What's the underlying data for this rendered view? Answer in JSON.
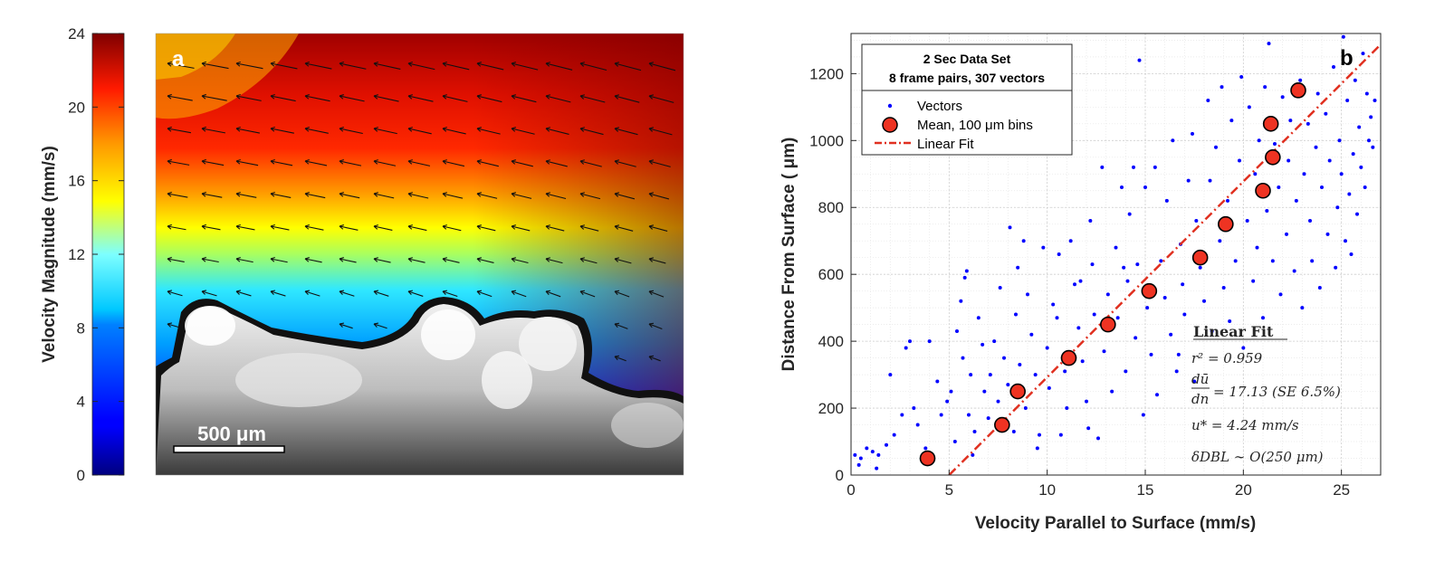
{
  "panel_a": {
    "label": "a",
    "scale_bar_label": "500 μm",
    "colorbar": {
      "label": "Velocity Magnitude (mm/s)",
      "ticks": [
        0,
        4,
        8,
        12,
        16,
        20,
        24
      ],
      "range": [
        0,
        24
      ]
    }
  },
  "panel_b": {
    "label": "b",
    "legend_title_line1": "2 Sec Data Set",
    "legend_title_line2": "8 frame pairs, 307 vectors",
    "fit_box": {
      "title": "Linear Fit",
      "r2": "r² = 0.959",
      "slope_lhs_num": "dū",
      "slope_lhs_den": "dn",
      "slope": "= 17.13   (SE 6.5%)",
      "ustar": "u* = 4.24 mm/s",
      "dbl": "δDBL ∼ O(250 μm)"
    }
  },
  "colors": {
    "vectors": "#0000ff",
    "means": "#ee3322",
    "fit": "#e03020",
    "grid": "#d8d8d8"
  },
  "chart_data": [
    {
      "type": "heatmap",
      "title": "",
      "colorbar_label": "Velocity Magnitude (mm/s)",
      "colorbar_range": [
        0,
        24
      ],
      "colorbar_ticks": [
        0,
        4,
        8,
        12,
        16,
        20,
        24
      ],
      "annotations": [
        "a",
        "500 μm"
      ]
    },
    {
      "type": "scatter",
      "title": "",
      "xlabel": "Velocity Parallel to Surface (mm/s)",
      "ylabel": "Distance From Surface ( μm)",
      "xlim": [
        0,
        27
      ],
      "ylim": [
        0,
        1320
      ],
      "xticks": [
        0,
        5,
        10,
        15,
        20,
        25
      ],
      "yticks": [
        0,
        200,
        400,
        600,
        800,
        1000,
        1200
      ],
      "grid": true,
      "legend_position": "top-left",
      "series": [
        {
          "name": "Vectors",
          "style": "points",
          "n_points": 307,
          "points": [
            [
              0.2,
              60
            ],
            [
              0.4,
              30
            ],
            [
              0.5,
              50
            ],
            [
              0.8,
              80
            ],
            [
              1.1,
              70
            ],
            [
              1.4,
              60
            ],
            [
              1.8,
              90
            ],
            [
              2.2,
              120
            ],
            [
              2.6,
              180
            ],
            [
              2.8,
              380
            ],
            [
              3.0,
              400
            ],
            [
              3.2,
              200
            ],
            [
              3.4,
              150
            ],
            [
              3.8,
              80
            ],
            [
              4.0,
              400
            ],
            [
              4.4,
              280
            ],
            [
              4.6,
              180
            ],
            [
              4.9,
              220
            ],
            [
              5.1,
              250
            ],
            [
              5.3,
              100
            ],
            [
              5.4,
              430
            ],
            [
              5.6,
              520
            ],
            [
              5.8,
              590
            ],
            [
              5.9,
              610
            ],
            [
              6.0,
              180
            ],
            [
              6.1,
              300
            ],
            [
              6.3,
              130
            ],
            [
              6.5,
              470
            ],
            [
              6.7,
              390
            ],
            [
              6.8,
              250
            ],
            [
              7.0,
              170
            ],
            [
              7.1,
              300
            ],
            [
              7.3,
              400
            ],
            [
              7.5,
              220
            ],
            [
              7.6,
              560
            ],
            [
              7.8,
              350
            ],
            [
              8.0,
              270
            ],
            [
              8.1,
              740
            ],
            [
              8.3,
              130
            ],
            [
              8.4,
              480
            ],
            [
              8.5,
              620
            ],
            [
              8.6,
              330
            ],
            [
              8.8,
              700
            ],
            [
              8.9,
              200
            ],
            [
              9.0,
              540
            ],
            [
              9.2,
              420
            ],
            [
              9.4,
              300
            ],
            [
              9.6,
              120
            ],
            [
              9.8,
              680
            ],
            [
              10.0,
              380
            ],
            [
              10.1,
              260
            ],
            [
              10.3,
              510
            ],
            [
              10.5,
              470
            ],
            [
              10.6,
              660
            ],
            [
              10.7,
              120
            ],
            [
              10.9,
              310
            ],
            [
              11.0,
              200
            ],
            [
              11.2,
              700
            ],
            [
              11.4,
              570
            ],
            [
              11.6,
              440
            ],
            [
              11.8,
              340
            ],
            [
              12.0,
              220
            ],
            [
              12.2,
              760
            ],
            [
              12.3,
              630
            ],
            [
              12.4,
              480
            ],
            [
              12.6,
              110
            ],
            [
              12.8,
              920
            ],
            [
              12.9,
              370
            ],
            [
              13.1,
              540
            ],
            [
              13.3,
              250
            ],
            [
              13.5,
              680
            ],
            [
              13.6,
              470
            ],
            [
              13.8,
              860
            ],
            [
              14.0,
              310
            ],
            [
              14.1,
              580
            ],
            [
              14.2,
              780
            ],
            [
              14.4,
              920
            ],
            [
              14.5,
              410
            ],
            [
              14.6,
              630
            ],
            [
              14.7,
              1240
            ],
            [
              14.9,
              180
            ],
            [
              15.0,
              860
            ],
            [
              15.1,
              500
            ],
            [
              15.3,
              360
            ],
            [
              15.5,
              920
            ],
            [
              15.6,
              240
            ],
            [
              15.8,
              640
            ],
            [
              16.0,
              530
            ],
            [
              16.1,
              820
            ],
            [
              16.3,
              420
            ],
            [
              16.4,
              1000
            ],
            [
              16.6,
              310
            ],
            [
              16.8,
              690
            ],
            [
              16.9,
              570
            ],
            [
              17.0,
              480
            ],
            [
              17.2,
              880
            ],
            [
              17.4,
              1020
            ],
            [
              17.5,
              280
            ],
            [
              17.6,
              760
            ],
            [
              17.8,
              620
            ],
            [
              18.0,
              520
            ],
            [
              18.2,
              1120
            ],
            [
              18.3,
              880
            ],
            [
              18.4,
              430
            ],
            [
              18.6,
              980
            ],
            [
              18.8,
              700
            ],
            [
              18.9,
              1160
            ],
            [
              19.0,
              560
            ],
            [
              19.2,
              820
            ],
            [
              19.3,
              460
            ],
            [
              19.4,
              1060
            ],
            [
              19.6,
              640
            ],
            [
              19.8,
              940
            ],
            [
              19.9,
              1190
            ],
            [
              20.0,
              380
            ],
            [
              20.2,
              760
            ],
            [
              20.3,
              1100
            ],
            [
              20.5,
              580
            ],
            [
              20.6,
              900
            ],
            [
              20.7,
              680
            ],
            [
              20.8,
              1000
            ],
            [
              21.0,
              470
            ],
            [
              21.1,
              1160
            ],
            [
              21.2,
              790
            ],
            [
              21.3,
              1290
            ],
            [
              21.5,
              640
            ],
            [
              21.6,
              990
            ],
            [
              21.8,
              860
            ],
            [
              21.9,
              540
            ],
            [
              22.0,
              1130
            ],
            [
              22.2,
              720
            ],
            [
              22.3,
              940
            ],
            [
              22.4,
              1060
            ],
            [
              22.6,
              610
            ],
            [
              22.7,
              820
            ],
            [
              22.9,
              1180
            ],
            [
              23.0,
              500
            ],
            [
              23.1,
              900
            ],
            [
              23.3,
              1050
            ],
            [
              23.4,
              760
            ],
            [
              23.5,
              640
            ],
            [
              23.7,
              980
            ],
            [
              23.8,
              1140
            ],
            [
              23.9,
              560
            ],
            [
              24.0,
              860
            ],
            [
              24.2,
              1080
            ],
            [
              24.3,
              720
            ],
            [
              24.4,
              940
            ],
            [
              24.6,
              1220
            ],
            [
              24.7,
              620
            ],
            [
              24.8,
              800
            ],
            [
              24.9,
              1000
            ],
            [
              25.0,
              900
            ],
            [
              25.1,
              1310
            ],
            [
              25.2,
              700
            ],
            [
              25.3,
              1120
            ],
            [
              25.4,
              840
            ],
            [
              25.5,
              660
            ],
            [
              25.6,
              960
            ],
            [
              25.7,
              1180
            ],
            [
              25.8,
              780
            ],
            [
              25.9,
              1040
            ],
            [
              26.0,
              920
            ],
            [
              26.1,
              1260
            ],
            [
              26.2,
              860
            ],
            [
              26.3,
              1140
            ],
            [
              26.4,
              1000
            ],
            [
              26.5,
              1070
            ],
            [
              26.6,
              980
            ],
            [
              26.7,
              1120
            ],
            [
              1.3,
              20
            ],
            [
              3.6,
              50
            ],
            [
              6.2,
              60
            ],
            [
              9.5,
              80
            ],
            [
              12.1,
              140
            ],
            [
              2.0,
              300
            ],
            [
              5.7,
              350
            ],
            [
              11.7,
              580
            ],
            [
              13.9,
              620
            ],
            [
              16.7,
              360
            ]
          ]
        },
        {
          "name": "Mean, 100 μm bins",
          "style": "circles",
          "x": [
            3.9,
            7.7,
            8.5,
            11.1,
            13.1,
            15.2,
            17.8,
            19.1,
            21.0,
            21.5,
            21.4,
            22.8
          ],
          "y": [
            50,
            150,
            250,
            350,
            450,
            550,
            650,
            750,
            850,
            950,
            1050,
            1150
          ]
        },
        {
          "name": "Linear Fit",
          "style": "dashdot-line",
          "x": [
            5.0,
            27.0
          ],
          "y": [
            0,
            1287
          ]
        }
      ]
    }
  ]
}
